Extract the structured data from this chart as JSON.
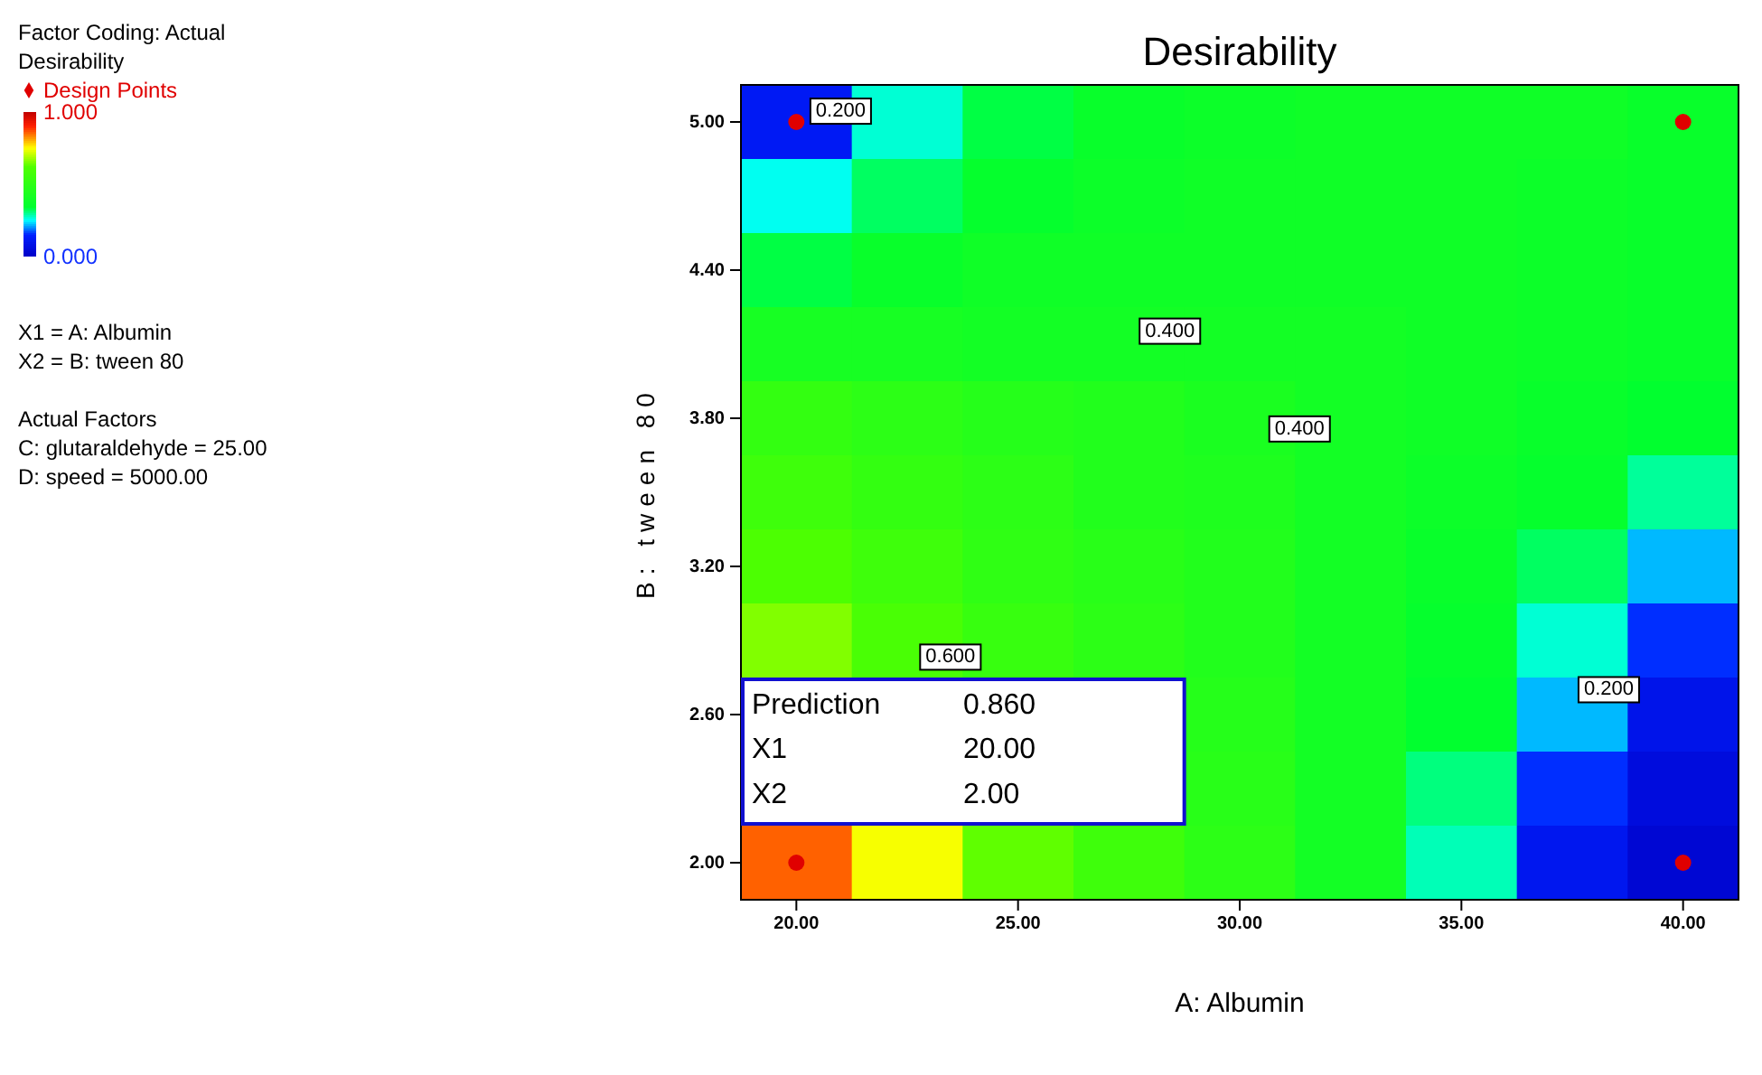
{
  "chart_data": {
    "type": "heatmap",
    "title": "Desirability",
    "xlabel": "A: Albumin",
    "ylabel": "B: tween 80",
    "clabel": "Desirability",
    "clim": [
      0,
      1
    ],
    "cticks": [
      {
        "value": 1,
        "label": "1.000"
      },
      {
        "value": 0,
        "label": "0.000"
      }
    ],
    "categories": [
      "20.00",
      null,
      "25.00",
      null,
      "30.00",
      null,
      "35.00",
      null,
      "40.00"
    ],
    "y_categories": [
      "5.00",
      null,
      "4.40",
      null,
      "3.80",
      null,
      "3.20",
      null,
      "2.60",
      null,
      "2.00"
    ],
    "cells": [
      [
        0.12,
        0.27,
        0.33,
        0.37,
        0.38,
        0.39,
        0.39,
        0.39,
        0.37
      ],
      [
        0.26,
        0.32,
        0.36,
        0.38,
        0.39,
        0.39,
        0.39,
        0.38,
        0.37
      ],
      [
        0.33,
        0.37,
        0.39,
        0.39,
        0.39,
        0.39,
        0.39,
        0.38,
        0.37
      ],
      [
        0.42,
        0.42,
        0.41,
        0.41,
        0.4,
        0.4,
        0.39,
        0.38,
        0.37
      ],
      [
        0.52,
        0.49,
        0.47,
        0.45,
        0.43,
        0.4,
        0.39,
        0.37,
        0.34
      ],
      [
        0.56,
        0.52,
        0.49,
        0.46,
        0.44,
        0.4,
        0.38,
        0.35,
        0.29
      ],
      [
        0.6,
        0.55,
        0.51,
        0.48,
        0.45,
        0.4,
        0.37,
        0.32,
        0.22
      ],
      [
        0.65,
        0.59,
        0.53,
        0.49,
        0.46,
        0.4,
        0.36,
        0.27,
        0.15
      ],
      [
        null,
        null,
        null,
        null,
        0.47,
        0.4,
        0.34,
        0.22,
        0.09
      ],
      [
        null,
        null,
        null,
        null,
        0.48,
        0.4,
        0.31,
        0.16,
        0.05
      ],
      [
        0.86,
        0.74,
        0.63,
        0.55,
        0.49,
        0.41,
        0.28,
        0.11,
        0.03
      ]
    ],
    "annotations": [
      "Factor Coding: Actual",
      "Design Points",
      "X1 = A: Albumin",
      "X2 = B: tween 80",
      "Actual Factors",
      "C: glutaraldehyde = 25.00",
      "D: speed = 5000.00",
      "0.200",
      "0.400",
      "0.400",
      "0.600",
      "0.200",
      "Prediction",
      "0.860",
      "X1",
      "20.00",
      "X2",
      "2.00"
    ]
  }
}
